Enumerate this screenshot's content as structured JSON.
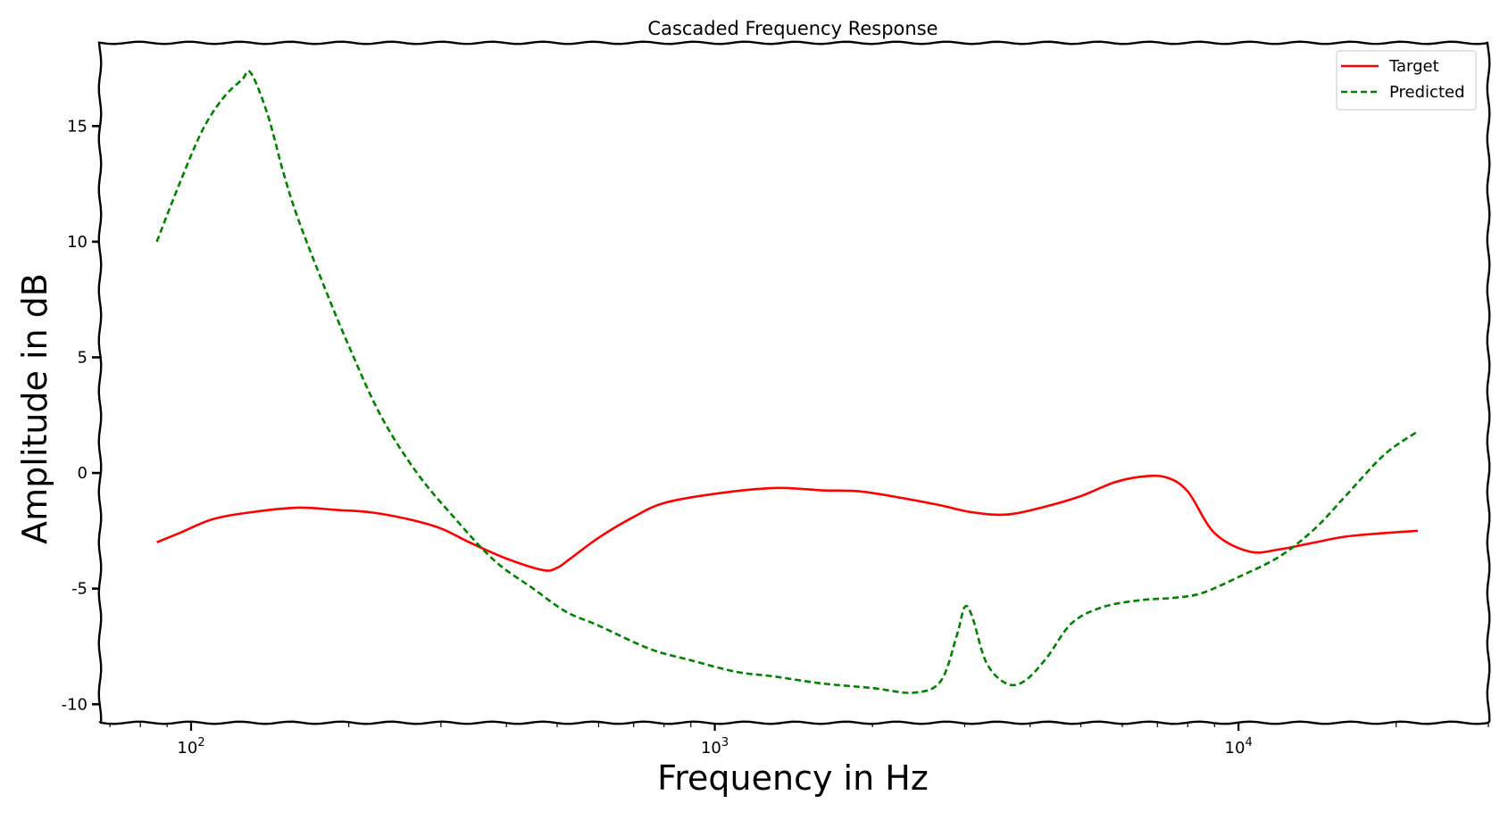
{
  "chart_data": {
    "type": "line",
    "title": "Cascaded Frequency Response",
    "xlabel": "Frequency in Hz",
    "ylabel": "Amplitude in dB",
    "xscale": "log",
    "xlim": [
      67,
      30000
    ],
    "ylim": [
      -10.8,
      18.6
    ],
    "x_ticks": [
      {
        "value": 100,
        "base": "10",
        "exp": "2"
      },
      {
        "value": 1000,
        "base": "10",
        "exp": "3"
      },
      {
        "value": 10000,
        "base": "10",
        "exp": "4"
      }
    ],
    "y_ticks": [
      {
        "value": 15,
        "label": "15"
      },
      {
        "value": 10,
        "label": "10"
      },
      {
        "value": 5,
        "label": "5"
      },
      {
        "value": 0,
        "label": "0"
      },
      {
        "value": -5,
        "label": "-5"
      },
      {
        "value": -10,
        "label": "-10"
      }
    ],
    "grid": false,
    "legend_position": "top-right",
    "series": [
      {
        "name": "Target",
        "color": "#ff0000",
        "style": "solid",
        "x": [
          86,
          95,
          110,
          130,
          160,
          190,
          220,
          260,
          300,
          340,
          400,
          470,
          500,
          530,
          600,
          700,
          800,
          1000,
          1300,
          1600,
          1900,
          2300,
          2700,
          3100,
          3600,
          4200,
          5000,
          5800,
          6600,
          7300,
          8000,
          9000,
          10500,
          12000,
          14000,
          16000,
          19000,
          22000
        ],
        "y": [
          -3.0,
          -2.6,
          -2.0,
          -1.7,
          -1.5,
          -1.6,
          -1.7,
          -2.0,
          -2.4,
          -3.0,
          -3.7,
          -4.2,
          -4.1,
          -3.7,
          -2.8,
          -1.9,
          -1.3,
          -0.9,
          -0.65,
          -0.75,
          -0.8,
          -1.1,
          -1.4,
          -1.7,
          -1.8,
          -1.5,
          -1.0,
          -0.4,
          -0.15,
          -0.2,
          -0.8,
          -2.6,
          -3.4,
          -3.3,
          -3.0,
          -2.75,
          -2.6,
          -2.5
        ]
      },
      {
        "name": "Predicted",
        "color": "#008000",
        "style": "dashed",
        "x": [
          86,
          95,
          105,
          115,
          125,
          130,
          140,
          150,
          160,
          180,
          200,
          230,
          270,
          320,
          380,
          450,
          520,
          600,
          750,
          900,
          1100,
          1300,
          1600,
          2000,
          2400,
          2700,
          2900,
          3000,
          3100,
          3300,
          3600,
          3900,
          4300,
          4800,
          5500,
          6500,
          7500,
          8500,
          10000,
          12000,
          14000,
          16000,
          19000,
          22000
        ],
        "y": [
          10.0,
          12.5,
          14.8,
          16.2,
          17.0,
          17.3,
          15.5,
          13.0,
          11.0,
          8.0,
          5.5,
          2.5,
          0.0,
          -2.0,
          -3.8,
          -5.0,
          -6.0,
          -6.6,
          -7.6,
          -8.1,
          -8.6,
          -8.8,
          -9.1,
          -9.3,
          -9.5,
          -9.0,
          -7.0,
          -5.8,
          -6.2,
          -8.2,
          -9.1,
          -9.0,
          -8.0,
          -6.5,
          -5.8,
          -5.5,
          -5.4,
          -5.2,
          -4.5,
          -3.6,
          -2.4,
          -1.0,
          0.8,
          1.8
        ]
      }
    ]
  }
}
